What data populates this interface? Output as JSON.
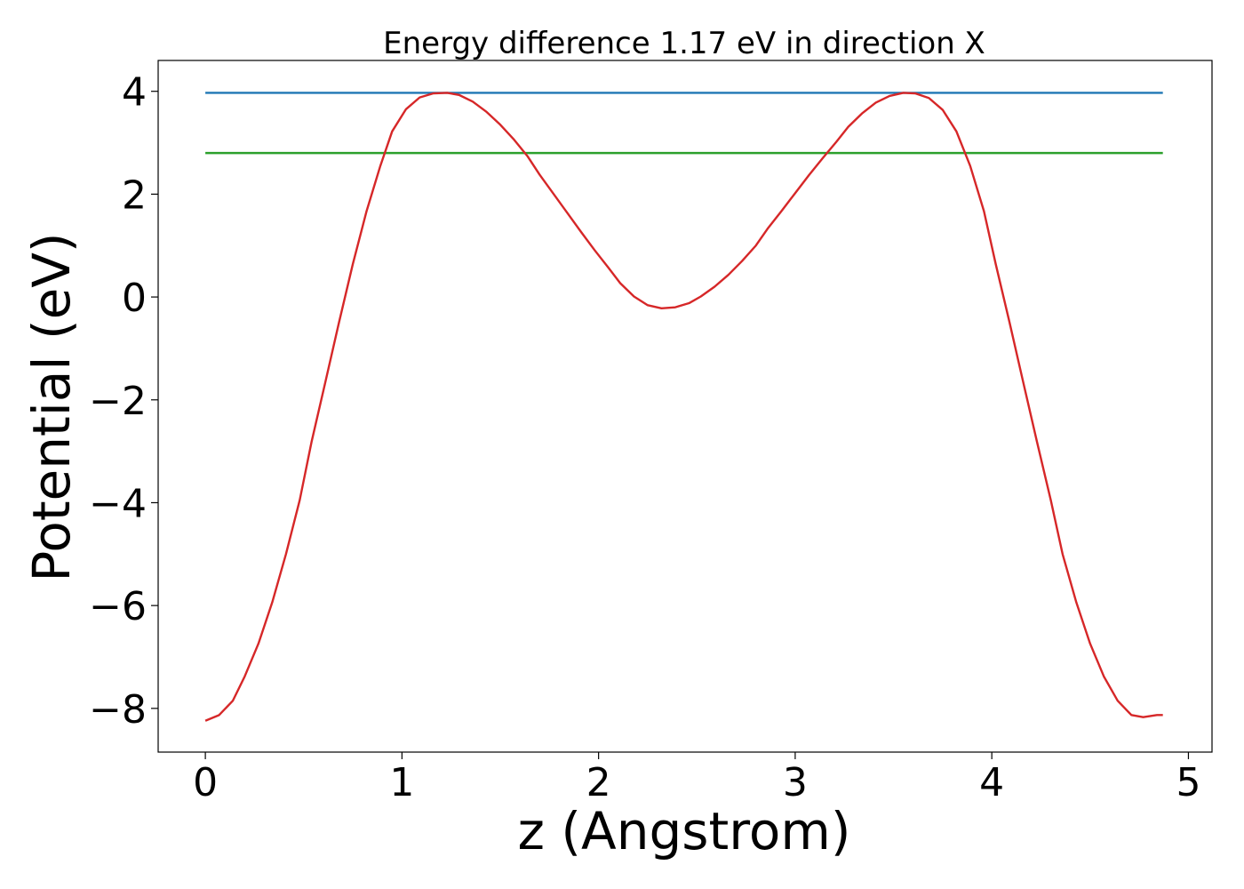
{
  "chart_data": {
    "type": "line",
    "title": "Energy difference 1.17 eV in direction X",
    "xlabel": "z (Angstrom)",
    "ylabel": "Potential (eV)",
    "xlim": [
      -0.24,
      5.12
    ],
    "ylim": [
      -8.85,
      4.6
    ],
    "xticks": [
      0,
      1,
      2,
      3,
      4,
      5
    ],
    "yticks": [
      4,
      2,
      0,
      -2,
      -4,
      -6,
      -8
    ],
    "xtick_labels": [
      "0",
      "1",
      "2",
      "3",
      "4",
      "5"
    ],
    "ytick_labels": [
      "4",
      "2",
      "0",
      "−2",
      "−4",
      "−6",
      "−8"
    ],
    "grid": false,
    "series": [
      {
        "color": "#1f77b4",
        "x": [
          0,
          4.87
        ],
        "y": [
          3.97,
          3.97
        ]
      },
      {
        "color": "#2ca02c",
        "x": [
          0,
          4.87
        ],
        "y": [
          2.8,
          2.8
        ]
      },
      {
        "color": "#d62728",
        "x": [
          0,
          0.07,
          0.14,
          0.2,
          0.27,
          0.34,
          0.41,
          0.48,
          0.54,
          0.61,
          0.68,
          0.75,
          0.82,
          0.89,
          0.95,
          1.02,
          1.09,
          1.16,
          1.23,
          1.29,
          1.36,
          1.43,
          1.5,
          1.57,
          1.64,
          1.7,
          1.77,
          1.84,
          1.91,
          1.98,
          2.05,
          2.11,
          2.18,
          2.25,
          2.32,
          2.39,
          2.46,
          2.52,
          2.59,
          2.66,
          2.73,
          2.8,
          2.86,
          2.93,
          3.0,
          3.07,
          3.14,
          3.21,
          3.27,
          3.34,
          3.41,
          3.48,
          3.55,
          3.61,
          3.68,
          3.75,
          3.82,
          3.89,
          3.96,
          4.02,
          4.09,
          4.16,
          4.23,
          4.3,
          4.36,
          4.43,
          4.5,
          4.57,
          4.64,
          4.71,
          4.77,
          4.84,
          4.87
        ],
        "y": [
          -8.24,
          -8.13,
          -7.85,
          -7.38,
          -6.74,
          -5.94,
          -5.0,
          -3.95,
          -2.82,
          -1.66,
          -0.49,
          0.64,
          1.67,
          2.55,
          3.22,
          3.65,
          3.88,
          3.96,
          3.97,
          3.93,
          3.8,
          3.6,
          3.35,
          3.06,
          2.73,
          2.38,
          2.01,
          1.64,
          1.27,
          0.91,
          0.57,
          0.27,
          0.01,
          -0.16,
          -0.22,
          -0.2,
          -0.12,
          0.01,
          0.2,
          0.43,
          0.7,
          1.0,
          1.33,
          1.67,
          2.02,
          2.37,
          2.7,
          3.02,
          3.31,
          3.57,
          3.78,
          3.91,
          3.97,
          3.96,
          3.87,
          3.64,
          3.22,
          2.55,
          1.67,
          0.64,
          -0.49,
          -1.66,
          -2.82,
          -3.95,
          -5.0,
          -5.94,
          -6.74,
          -7.38,
          -7.85,
          -8.13,
          -8.17,
          -8.13,
          -8.13
        ]
      }
    ]
  }
}
